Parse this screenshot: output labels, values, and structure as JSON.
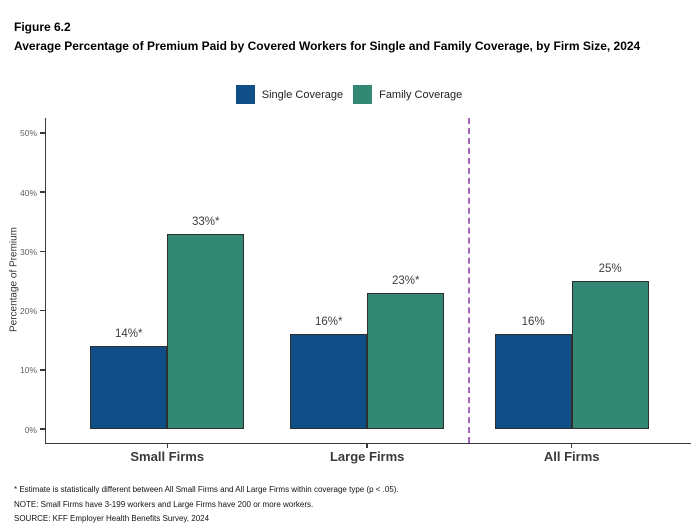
{
  "figure": {
    "label": "Figure 6.2",
    "title": "Average Percentage of Premium Paid by Covered Workers for Single and Family Coverage, by Firm Size, 2024"
  },
  "colors": {
    "single_coverage": "#0F4E87",
    "family_coverage": "#338873",
    "separator": "#A566BE",
    "axis": "#3a3a3a"
  },
  "chart_data": {
    "type": "bar",
    "categories": [
      "Small Firms",
      "Large Firms",
      "All Firms"
    ],
    "series": [
      {
        "name": "Single Coverage",
        "color": "#0F4E87",
        "values": [
          14,
          16,
          16
        ],
        "data_labels": [
          "14%*",
          "16%*",
          "16%"
        ]
      },
      {
        "name": "Family Coverage",
        "color": "#338873",
        "values": [
          33,
          23,
          25
        ],
        "data_labels": [
          "33%*",
          "23%*",
          "25%"
        ]
      }
    ],
    "title": "Average Percentage of Premium Paid by Covered Workers for Single and Family Coverage, by Firm Size, 2024",
    "xlabel": "",
    "ylabel": "Percentage of Premium",
    "ylim": [
      0,
      52.5
    ],
    "ytick_values": [
      0,
      10,
      20,
      30,
      40,
      50
    ],
    "ytick_labels": [
      "0%",
      "10%",
      "20%",
      "30%",
      "40%",
      "50%"
    ],
    "grid": false,
    "legend_position": "top",
    "separator": {
      "between_categories": [
        "Large Firms",
        "All Firms"
      ],
      "style": "dashed",
      "color": "#A566BE"
    }
  },
  "footnotes": [
    "* Estimate is statistically different between All Small Firms and All Large Firms within coverage type (p < .05).",
    "NOTE: Small Firms have 3-199 workers and Large Firms have 200 or more workers.",
    "SOURCE: KFF Employer Health Benefits Survey, 2024"
  ]
}
